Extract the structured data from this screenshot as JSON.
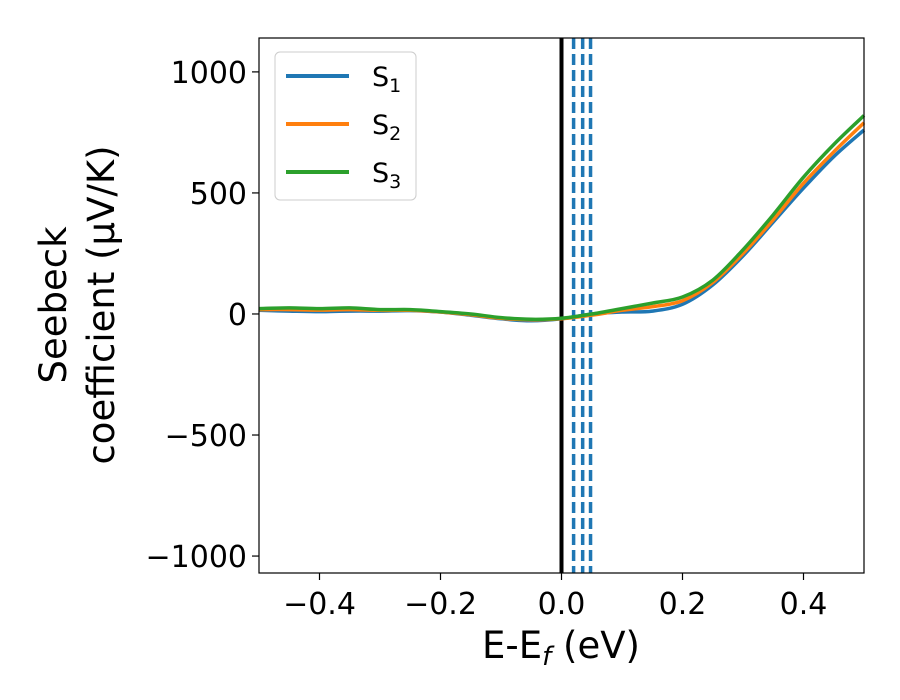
{
  "chart_data": {
    "type": "line",
    "xlabel": {
      "main": "E-E",
      "sub": "f",
      "unit": " (eV)"
    },
    "ylabel": {
      "line1": "Seebeck",
      "line2": "coefficient  (μV/K)"
    },
    "xlim": [
      -0.5,
      0.5
    ],
    "ylim": [
      -1070,
      1140
    ],
    "xticks": [
      -0.4,
      -0.2,
      0.0,
      0.2,
      0.4
    ],
    "xtick_labels": [
      "−0.4",
      "−0.2",
      "0.0",
      "0.2",
      "0.4"
    ],
    "yticks": [
      1000,
      500,
      0,
      -500,
      -1000
    ],
    "ytick_labels": [
      "1000",
      "500",
      "0",
      "−500",
      "−1000"
    ],
    "grid": false,
    "legend_position": "top-left",
    "vertical_lines": [
      {
        "x": 0.0,
        "style": "solid",
        "color": "#000000"
      },
      {
        "x": 0.02,
        "style": "dashed",
        "color": "#1f77b4"
      },
      {
        "x": 0.035,
        "style": "dashed",
        "color": "#1f77b4"
      },
      {
        "x": 0.048,
        "style": "dashed",
        "color": "#1f77b4"
      }
    ],
    "series": [
      {
        "name": "S",
        "sub": "1",
        "color": "#1f77b4",
        "x": [
          -0.5,
          -0.45,
          -0.4,
          -0.35,
          -0.3,
          -0.25,
          -0.2,
          -0.15,
          -0.1,
          -0.05,
          0.0,
          0.05,
          0.1,
          0.15,
          0.2,
          0.25,
          0.3,
          0.35,
          0.4,
          0.45,
          0.5
        ],
        "y": [
          15,
          12,
          10,
          12,
          12,
          14,
          8,
          -5,
          -20,
          -28,
          -20,
          0,
          8,
          12,
          40,
          120,
          240,
          380,
          520,
          650,
          760
        ]
      },
      {
        "name": "S",
        "sub": "2",
        "color": "#ff7f0e",
        "x": [
          -0.5,
          -0.45,
          -0.4,
          -0.35,
          -0.3,
          -0.25,
          -0.2,
          -0.15,
          -0.1,
          -0.05,
          0.0,
          0.05,
          0.1,
          0.15,
          0.2,
          0.25,
          0.3,
          0.35,
          0.4,
          0.45,
          0.5
        ],
        "y": [
          18,
          18,
          16,
          18,
          15,
          15,
          8,
          -3,
          -18,
          -24,
          -20,
          -5,
          15,
          30,
          55,
          130,
          250,
          390,
          540,
          670,
          790
        ]
      },
      {
        "name": "S",
        "sub": "3",
        "color": "#2ca02c",
        "x": [
          -0.5,
          -0.45,
          -0.4,
          -0.35,
          -0.3,
          -0.25,
          -0.2,
          -0.15,
          -0.1,
          -0.05,
          0.0,
          0.05,
          0.1,
          0.15,
          0.2,
          0.25,
          0.3,
          0.35,
          0.4,
          0.45,
          0.5
        ],
        "y": [
          22,
          25,
          22,
          25,
          18,
          18,
          10,
          0,
          -15,
          -22,
          -18,
          0,
          22,
          45,
          70,
          140,
          265,
          410,
          565,
          700,
          820
        ]
      }
    ]
  }
}
